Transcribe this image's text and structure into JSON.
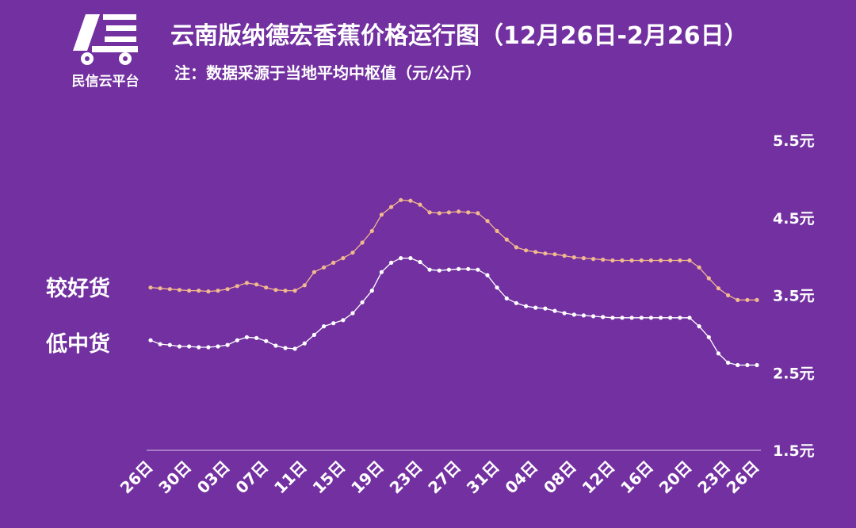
{
  "logo": {
    "text": "民信云平台",
    "icon": "truck-icon"
  },
  "header": {
    "title": "云南版纳德宏香蕉价格运行图（12月26日-2月26日）",
    "subtitle": "注：数据采源于当地平均中枢值（元/公斤）"
  },
  "colors": {
    "background": "#7230a0",
    "good": "#f2b98e",
    "low": "#ffffff",
    "axis": "#d8c6ea"
  },
  "chart_data": {
    "type": "line",
    "title": "云南版纳德宏香蕉价格运行图（12月26日-2月26日）",
    "ylabel": "",
    "xlabel": "",
    "ylim": [
      1.5,
      5.5
    ],
    "yticks": [
      "1.5元",
      "2.5元",
      "3.5元",
      "4.5元",
      "5.5元"
    ],
    "ytick_values": [
      1.5,
      2.5,
      3.5,
      4.5,
      5.5
    ],
    "xtick_labels": [
      "26日",
      "30日",
      "03日",
      "07日",
      "11日",
      "15日",
      "19日",
      "23日",
      "27日",
      "31日",
      "04日",
      "08日",
      "12日",
      "16日",
      "20日",
      "23日",
      "26日"
    ],
    "xtick_indices": [
      0,
      4,
      8,
      12,
      16,
      20,
      24,
      28,
      32,
      36,
      40,
      44,
      48,
      52,
      56,
      60,
      63
    ],
    "legend": "left",
    "grid": false,
    "series": [
      {
        "name": "较好货",
        "values": [
          3.6,
          3.59,
          3.58,
          3.57,
          3.56,
          3.56,
          3.55,
          3.56,
          3.58,
          3.62,
          3.66,
          3.64,
          3.6,
          3.57,
          3.56,
          3.56,
          3.63,
          3.8,
          3.86,
          3.92,
          3.98,
          4.05,
          4.18,
          4.33,
          4.54,
          4.64,
          4.73,
          4.72,
          4.67,
          4.57,
          4.56,
          4.57,
          4.58,
          4.57,
          4.56,
          4.46,
          4.33,
          4.22,
          4.12,
          4.08,
          4.06,
          4.04,
          4.03,
          4.01,
          3.99,
          3.98,
          3.97,
          3.96,
          3.95,
          3.95,
          3.95,
          3.95,
          3.95,
          3.95,
          3.95,
          3.95,
          3.95,
          3.86,
          3.72,
          3.59,
          3.5,
          3.44,
          3.44,
          3.44
        ]
      },
      {
        "name": "低中货",
        "values": [
          2.92,
          2.87,
          2.86,
          2.84,
          2.84,
          2.83,
          2.83,
          2.84,
          2.86,
          2.92,
          2.96,
          2.95,
          2.91,
          2.85,
          2.82,
          2.81,
          2.88,
          2.99,
          3.1,
          3.14,
          3.18,
          3.27,
          3.41,
          3.56,
          3.8,
          3.92,
          3.98,
          3.98,
          3.93,
          3.83,
          3.82,
          3.83,
          3.84,
          3.84,
          3.83,
          3.76,
          3.6,
          3.46,
          3.4,
          3.36,
          3.34,
          3.33,
          3.3,
          3.27,
          3.25,
          3.24,
          3.23,
          3.22,
          3.21,
          3.21,
          3.21,
          3.21,
          3.21,
          3.21,
          3.21,
          3.21,
          3.21,
          3.1,
          2.96,
          2.75,
          2.63,
          2.6,
          2.6,
          2.6
        ]
      }
    ]
  }
}
